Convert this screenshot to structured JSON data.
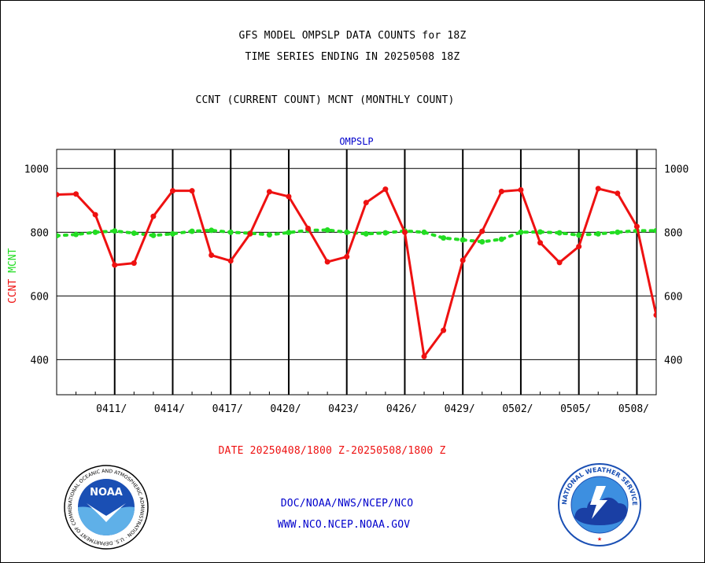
{
  "header": {
    "title_line1": "GFS MODEL OMPSLP DATA COUNTS for 18Z",
    "title_line2": "TIME SERIES ENDING IN 20250508 18Z",
    "legend_line": "CCNT (CURRENT COUNT) MCNT (MONTHLY COUNT)"
  },
  "footer": {
    "date_range": "DATE 20250408/1800 Z-20250508/1800 Z",
    "org_path": "DOC/NOAA/NWS/NCEP/NCO",
    "website": "WWW.NCO.NCEP.NOAA.GOV"
  },
  "logos": {
    "noaa_label": "NOAA",
    "noaa_ring_text": "NATIONAL OCEANIC AND ATMOSPHERIC ADMINISTRATION · U.S. DEPARTMENT OF COMMERCE",
    "nws_ring_text": "NATIONAL WEATHER SERVICE"
  },
  "colors": {
    "ccnt": "#ee1111",
    "mcnt": "#22dd22",
    "subtitle": "#0000cc",
    "date_text": "#ee1111",
    "footer_text": "#0000cc"
  },
  "chart_data": {
    "type": "line",
    "subtitle": "OMPSLP",
    "ylabel_left": [
      "CCNT",
      "MCNT"
    ],
    "ylim": [
      290,
      1060
    ],
    "y_ticks": [
      400,
      600,
      800,
      1000
    ],
    "x_range": [
      "2025-04-08",
      "2025-05-09"
    ],
    "x_ticks": [
      "0411/",
      "0414/",
      "0417/",
      "0420/",
      "0423/",
      "0426/",
      "0429/",
      "0502/",
      "0505/",
      "0508/"
    ],
    "x_tick_dates": [
      "2025-04-11",
      "2025-04-14",
      "2025-04-17",
      "2025-04-20",
      "2025-04-23",
      "2025-04-26",
      "2025-04-29",
      "2025-05-02",
      "2025-05-05",
      "2025-05-08"
    ],
    "grid": true,
    "series": [
      {
        "name": "CCNT",
        "dates": [
          "2025-04-08",
          "2025-04-09",
          "2025-04-10",
          "2025-04-11",
          "2025-04-12",
          "2025-04-13",
          "2025-04-14",
          "2025-04-15",
          "2025-04-16",
          "2025-04-17",
          "2025-04-18",
          "2025-04-19",
          "2025-04-20",
          "2025-04-21",
          "2025-04-22",
          "2025-04-23",
          "2025-04-24",
          "2025-04-25",
          "2025-04-26",
          "2025-04-27",
          "2025-04-28",
          "2025-04-29",
          "2025-04-30",
          "2025-05-01",
          "2025-05-02",
          "2025-05-03",
          "2025-05-04",
          "2025-05-05",
          "2025-05-06",
          "2025-05-07",
          "2025-05-08",
          "2025-05-09"
        ],
        "values": [
          918,
          920,
          855,
          697,
          703,
          850,
          930,
          930,
          728,
          710,
          795,
          927,
          912,
          812,
          707,
          723,
          893,
          935,
          800,
          410,
          492,
          712,
          803,
          928,
          933,
          767,
          705,
          755,
          937,
          922,
          818,
          540
        ]
      },
      {
        "name": "MCNT",
        "dates": [
          "2025-04-08",
          "2025-04-09",
          "2025-04-10",
          "2025-04-11",
          "2025-04-12",
          "2025-04-13",
          "2025-04-14",
          "2025-04-15",
          "2025-04-16",
          "2025-04-17",
          "2025-04-18",
          "2025-04-19",
          "2025-04-20",
          "2025-04-21",
          "2025-04-22",
          "2025-04-23",
          "2025-04-24",
          "2025-04-25",
          "2025-04-26",
          "2025-04-27",
          "2025-04-28",
          "2025-04-29",
          "2025-04-30",
          "2025-05-01",
          "2025-05-02",
          "2025-05-03",
          "2025-05-04",
          "2025-05-05",
          "2025-05-06",
          "2025-05-07",
          "2025-05-08",
          "2025-05-09"
        ],
        "values": [
          789,
          793,
          800,
          804,
          797,
          790,
          795,
          803,
          806,
          800,
          797,
          792,
          799,
          806,
          807,
          800,
          795,
          798,
          804,
          800,
          782,
          776,
          770,
          778,
          800,
          801,
          798,
          791,
          795,
          800,
          805,
          805
        ]
      }
    ]
  }
}
